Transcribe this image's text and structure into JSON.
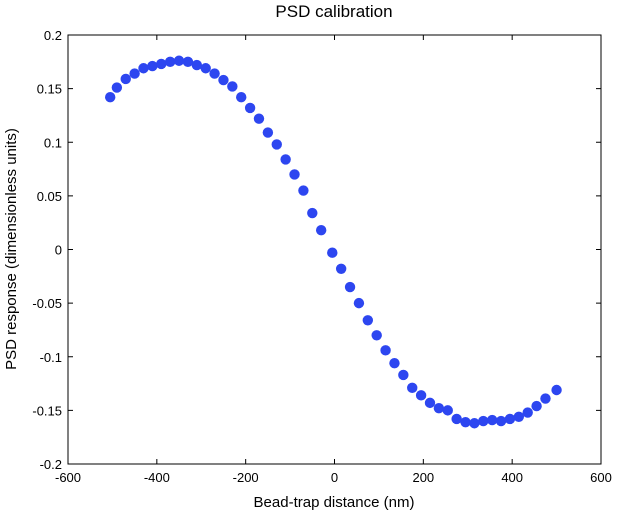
{
  "chart_data": {
    "type": "scatter",
    "title": "PSD calibration",
    "xlabel": "Bead-trap distance (nm)",
    "ylabel": "PSD response (dimensionless units)",
    "xlim": [
      -600,
      600
    ],
    "ylim": [
      -0.2,
      0.2
    ],
    "xticks": [
      -600,
      -400,
      -200,
      0,
      200,
      400,
      600
    ],
    "xtick_labels": [
      "-600",
      "-400",
      "-200",
      "0",
      "200",
      "400",
      "600"
    ],
    "yticks": [
      -0.2,
      -0.15,
      -0.1,
      -0.05,
      0,
      0.05,
      0.1,
      0.15,
      0.2
    ],
    "ytick_labels": [
      "-0.2",
      "-0.15",
      "-0.1",
      "-0.05",
      "0",
      "0.05",
      "0.1",
      "0.15",
      "0.2"
    ],
    "grid": false,
    "marker_color": "#2d46f0",
    "series": [
      {
        "points": [
          [
            -505,
            0.142
          ],
          [
            -490,
            0.151
          ],
          [
            -470,
            0.159
          ],
          [
            -450,
            0.164
          ],
          [
            -430,
            0.169
          ],
          [
            -410,
            0.171
          ],
          [
            -390,
            0.173
          ],
          [
            -370,
            0.175
          ],
          [
            -350,
            0.176
          ],
          [
            -330,
            0.175
          ],
          [
            -310,
            0.172
          ],
          [
            -290,
            0.169
          ],
          [
            -270,
            0.164
          ],
          [
            -250,
            0.158
          ],
          [
            -230,
            0.152
          ],
          [
            -210,
            0.142
          ],
          [
            -190,
            0.132
          ],
          [
            -170,
            0.122
          ],
          [
            -150,
            0.109
          ],
          [
            -130,
            0.098
          ],
          [
            -110,
            0.084
          ],
          [
            -90,
            0.07
          ],
          [
            -70,
            0.055
          ],
          [
            -50,
            0.034
          ],
          [
            -30,
            0.018
          ],
          [
            -5,
            -0.003
          ],
          [
            15,
            -0.018
          ],
          [
            35,
            -0.035
          ],
          [
            55,
            -0.05
          ],
          [
            75,
            -0.066
          ],
          [
            95,
            -0.08
          ],
          [
            115,
            -0.094
          ],
          [
            135,
            -0.106
          ],
          [
            155,
            -0.117
          ],
          [
            175,
            -0.129
          ],
          [
            195,
            -0.136
          ],
          [
            215,
            -0.143
          ],
          [
            235,
            -0.148
          ],
          [
            255,
            -0.15
          ],
          [
            275,
            -0.158
          ],
          [
            295,
            -0.161
          ],
          [
            315,
            -0.162
          ],
          [
            335,
            -0.16
          ],
          [
            355,
            -0.159
          ],
          [
            375,
            -0.16
          ],
          [
            395,
            -0.158
          ],
          [
            415,
            -0.156
          ],
          [
            435,
            -0.152
          ],
          [
            455,
            -0.146
          ],
          [
            475,
            -0.139
          ],
          [
            500,
            -0.131
          ]
        ]
      }
    ]
  }
}
